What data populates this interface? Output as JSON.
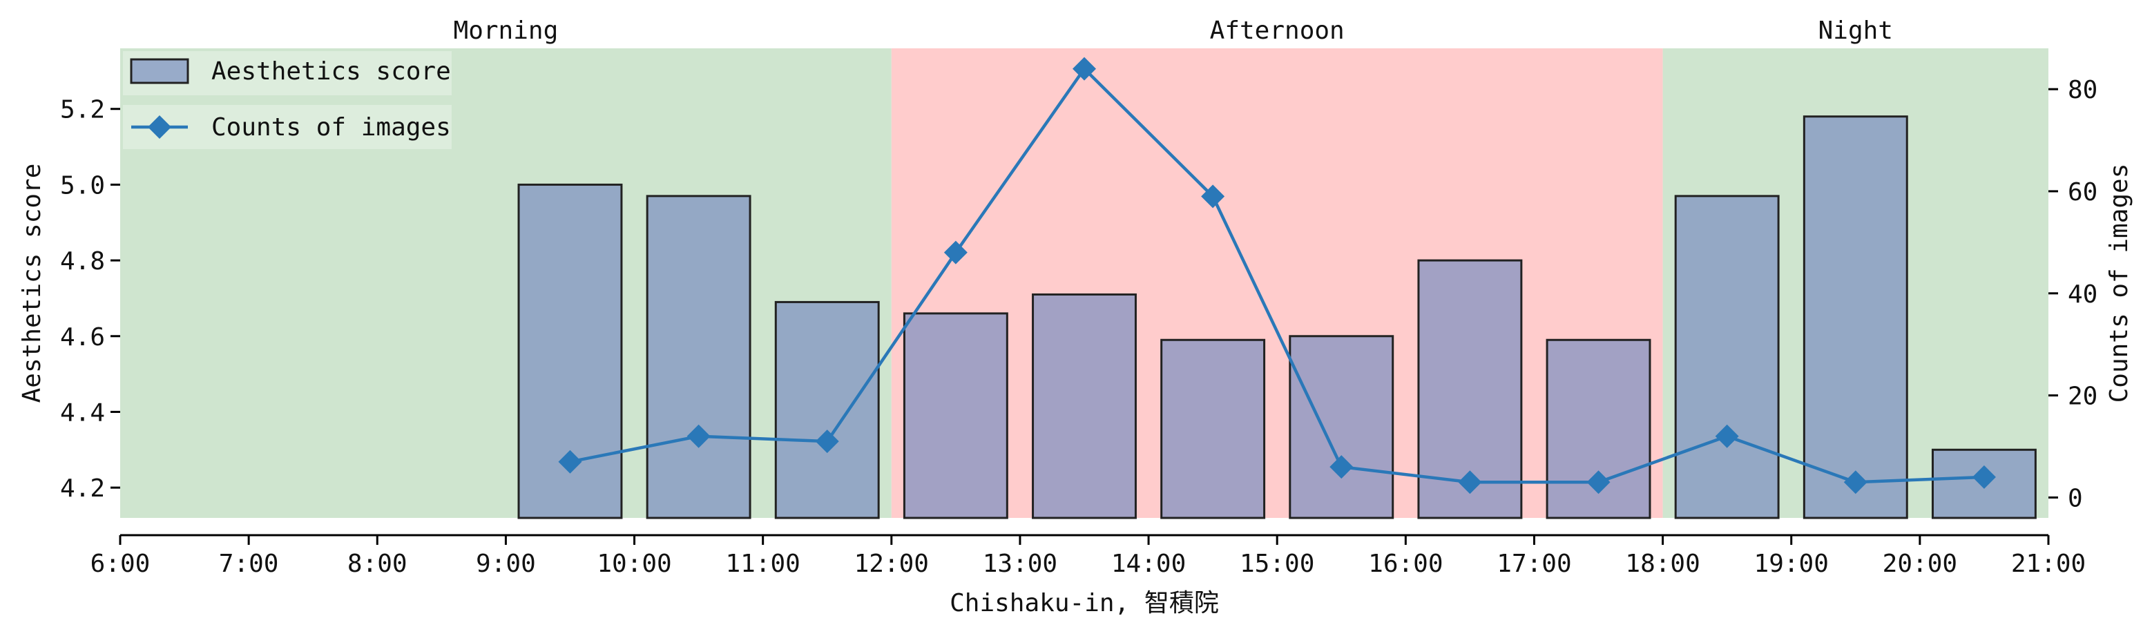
{
  "chart_data": {
    "type": "bar+line",
    "xlabel": "Chishaku-in, 智積院",
    "ylabel_left": "Aesthetics score",
    "ylabel_right": "Counts of images",
    "x_range": [
      "6:00",
      "21:00"
    ],
    "x_ticks": [
      "6:00",
      "7:00",
      "8:00",
      "9:00",
      "10:00",
      "11:00",
      "12:00",
      "13:00",
      "14:00",
      "15:00",
      "16:00",
      "17:00",
      "18:00",
      "19:00",
      "20:00",
      "21:00"
    ],
    "ylim_left": [
      4.12,
      5.36
    ],
    "yticks_left": [
      "4.2",
      "4.4",
      "4.6",
      "4.8",
      "5.0",
      "5.2"
    ],
    "ylim_right": [
      -4,
      88
    ],
    "yticks_right": [
      "0",
      "20",
      "40",
      "60",
      "80"
    ],
    "periods": [
      {
        "label": "Morning",
        "start": 6,
        "end": 12,
        "color": "#cfe5cf"
      },
      {
        "label": "Afternoon",
        "start": 12,
        "end": 18,
        "color": "#ffcccc"
      },
      {
        "label": "Night",
        "start": 18,
        "end": 21,
        "color": "#cfe5cf"
      }
    ],
    "hours": [
      "9:30",
      "10:30",
      "11:30",
      "12:30",
      "13:30",
      "14:30",
      "15:30",
      "16:30",
      "17:30",
      "18:30",
      "19:30",
      "20:30"
    ],
    "series": [
      {
        "name": "Aesthetics score",
        "type": "bar",
        "axis": "left",
        "color": "#7b8fc0",
        "values": [
          5.0,
          4.97,
          4.69,
          4.66,
          4.71,
          4.59,
          4.6,
          4.8,
          4.59,
          4.97,
          5.18,
          4.3
        ]
      },
      {
        "name": "Counts of images",
        "type": "line",
        "axis": "right",
        "color": "#2a78b8",
        "marker": "diamond",
        "values": [
          7,
          12,
          11,
          48,
          84,
          59,
          6,
          3,
          3,
          12,
          3,
          4
        ]
      }
    ],
    "legend": {
      "position": "top-left"
    }
  }
}
